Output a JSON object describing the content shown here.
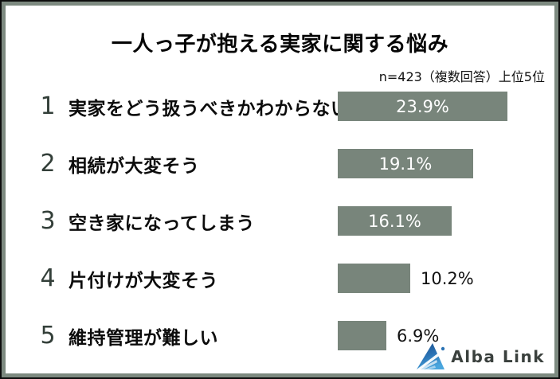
{
  "header": {
    "title": "一人っ子が抱える実家に関する悩み",
    "note": "n=423（複数回答）上位5位"
  },
  "chart_data": {
    "type": "bar",
    "orientation": "horizontal",
    "title": "一人っ子が抱える実家に関する悩み",
    "note": "n=423（複数回答）上位5位",
    "unit": "%",
    "xlim": [
      0,
      25
    ],
    "grid": false,
    "legend": "none",
    "bar_color": "#78857b",
    "categories": [
      "実家をどう扱うべきかわからない",
      "相続が大変そう",
      "空き家になってしまう",
      "片付けが大変そう",
      "維持管理が難しい"
    ],
    "values": [
      23.9,
      19.1,
      16.1,
      10.2,
      6.9
    ],
    "rows": [
      {
        "rank": "1",
        "label": "実家をどう扱うべきかわからない",
        "value": 23.9,
        "display": "23.9%",
        "value_label_position": "inside"
      },
      {
        "rank": "2",
        "label": "相続が大変そう",
        "value": 19.1,
        "display": "19.1%",
        "value_label_position": "inside"
      },
      {
        "rank": "3",
        "label": "空き家になってしまう",
        "value": 16.1,
        "display": "16.1%",
        "value_label_position": "inside"
      },
      {
        "rank": "4",
        "label": "片付けが大変そう",
        "value": 10.2,
        "display": "10.2%",
        "value_label_position": "outside"
      },
      {
        "rank": "5",
        "label": "維持管理が難しい",
        "value": 6.9,
        "display": "6.9%",
        "value_label_position": "outside"
      }
    ]
  },
  "colors": {
    "frame_band": "#7d8a80",
    "outer_border": "#0d0d0d",
    "rank_text": "#333f39",
    "bar_text_inside": "#ffffff",
    "bar_text_outside": "#101010",
    "logo_dark_blue": "#1b4f8c",
    "logo_light_blue": "#3f9fd8"
  },
  "footer": {
    "logo_text": "Alba Link"
  }
}
